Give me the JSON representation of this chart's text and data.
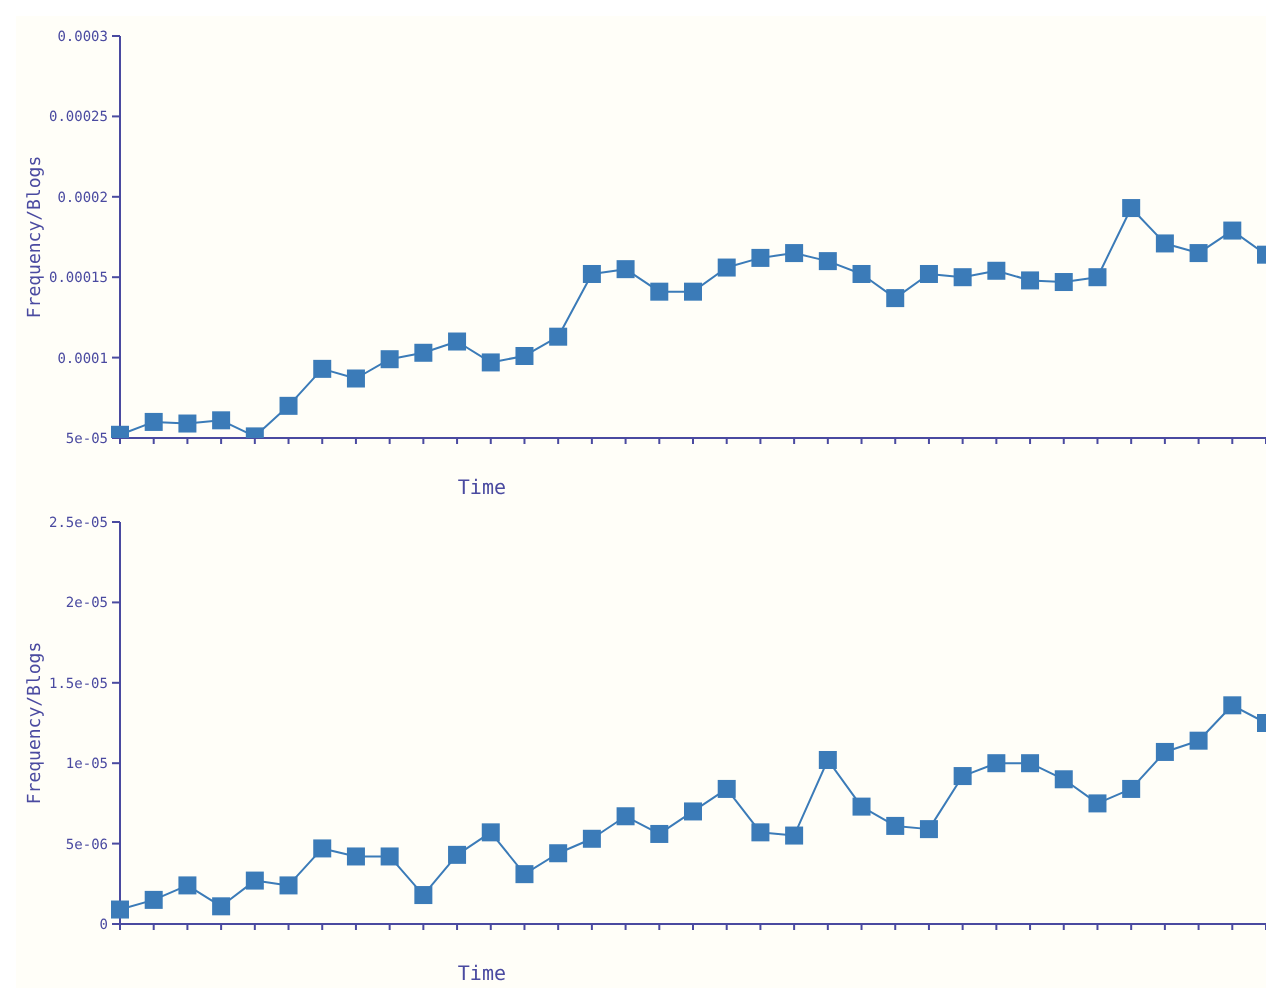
{
  "chart_data": [
    {
      "type": "line",
      "xlabel": "Time",
      "ylabel": "Frequency/Blogs",
      "marker": "square",
      "grid": false,
      "legend": false,
      "categories": [
        null,
        null,
        null,
        null,
        null,
        null,
        null,
        null,
        null,
        null,
        null,
        null,
        null,
        null,
        null,
        null,
        null,
        null,
        null,
        null,
        null,
        null,
        null,
        null,
        null,
        null,
        null,
        null,
        null,
        null,
        null,
        null,
        null,
        null,
        null
      ],
      "series": [
        {
          "color": "#3b7bb8",
          "values": [
            5.2e-05,
            6e-05,
            5.9e-05,
            6.1e-05,
            5.1e-05,
            7e-05,
            9.3e-05,
            8.7e-05,
            9.9e-05,
            0.000103,
            0.00011,
            9.7e-05,
            0.000101,
            0.000113,
            0.000152,
            0.000155,
            0.000141,
            0.000141,
            0.000156,
            0.000162,
            0.000165,
            0.00016,
            0.000152,
            0.000137,
            0.000152,
            0.00015,
            0.000154,
            0.000148,
            0.000147,
            0.00015,
            0.000193,
            0.000171,
            0.000165,
            0.000179,
            0.000164
          ]
        }
      ],
      "ylim": [
        5e-05,
        0.0003
      ],
      "yticks": [
        {
          "value": 5e-05,
          "label": "5e-05"
        },
        0.0001,
        0.00015,
        0.0002,
        0.00025,
        0.0003
      ]
    },
    {
      "type": "line",
      "xlabel": "Time",
      "ylabel": "Frequency/Blogs",
      "marker": "square",
      "grid": false,
      "legend": false,
      "categories": [
        null,
        null,
        null,
        null,
        null,
        null,
        null,
        null,
        null,
        null,
        null,
        null,
        null,
        null,
        null,
        null,
        null,
        null,
        null,
        null,
        null,
        null,
        null,
        null,
        null,
        null,
        null,
        null,
        null,
        null,
        null,
        null,
        null,
        null,
        null
      ],
      "series": [
        {
          "color": "#3b7bb8",
          "values": [
            9e-07,
            1.5e-06,
            2.4e-06,
            1.1e-06,
            2.7e-06,
            2.4e-06,
            4.7e-06,
            4.2e-06,
            4.2e-06,
            1.8e-06,
            4.3e-06,
            5.7e-06,
            3.1e-06,
            4.4e-06,
            5.3e-06,
            6.7e-06,
            5.6e-06,
            7e-06,
            8.4e-06,
            5.7e-06,
            5.5e-06,
            1.02e-05,
            7.3e-06,
            6.1e-06,
            5.9e-06,
            9.2e-06,
            1e-05,
            1e-05,
            9e-06,
            7.5e-06,
            8.4e-06,
            1.07e-05,
            1.14e-05,
            1.36e-05,
            1.25e-05
          ]
        }
      ],
      "ylim": [
        0,
        2.5e-05
      ],
      "yticks": [
        0,
        {
          "value": 5e-06,
          "label": "5e-06"
        },
        {
          "value": 1e-05,
          "label": "1e-05"
        },
        {
          "value": 1.5e-05,
          "label": "1.5e-05"
        },
        {
          "value": 2e-05,
          "label": "2e-05"
        },
        {
          "value": 2.5e-05,
          "label": "2.5e-05"
        }
      ]
    }
  ]
}
